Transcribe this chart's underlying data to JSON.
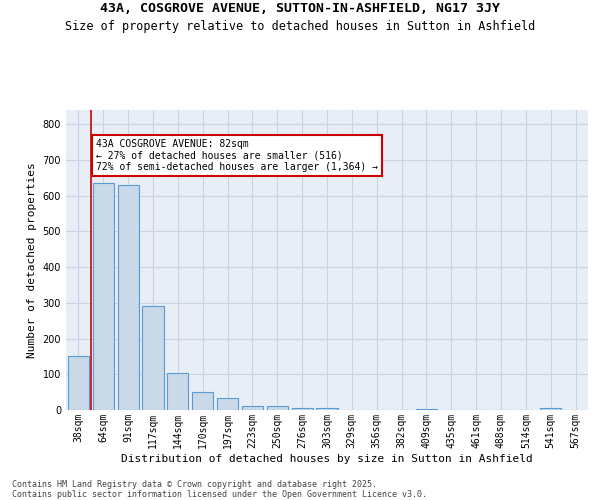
{
  "title1": "43A, COSGROVE AVENUE, SUTTON-IN-ASHFIELD, NG17 3JY",
  "title2": "Size of property relative to detached houses in Sutton in Ashfield",
  "xlabel": "Distribution of detached houses by size in Sutton in Ashfield",
  "ylabel": "Number of detached properties",
  "categories": [
    "38sqm",
    "64sqm",
    "91sqm",
    "117sqm",
    "144sqm",
    "170sqm",
    "197sqm",
    "223sqm",
    "250sqm",
    "276sqm",
    "303sqm",
    "329sqm",
    "356sqm",
    "382sqm",
    "409sqm",
    "435sqm",
    "461sqm",
    "488sqm",
    "514sqm",
    "541sqm",
    "567sqm"
  ],
  "values": [
    150,
    635,
    630,
    290,
    105,
    50,
    35,
    12,
    12,
    7,
    5,
    0,
    0,
    0,
    3,
    0,
    0,
    0,
    0,
    5,
    0
  ],
  "bar_color": "#c9d9e8",
  "bar_edge_color": "#5b9bd5",
  "grid_color": "#c8d4e3",
  "background_color": "#e8eef5",
  "annotation_box_text": "43A COSGROVE AVENUE: 82sqm\n← 27% of detached houses are smaller (516)\n72% of semi-detached houses are larger (1,364) →",
  "annotation_box_color": "#cc0000",
  "vline_x": 0.5,
  "vline_color": "#cc0000",
  "ylim": [
    0,
    840
  ],
  "yticks": [
    0,
    100,
    200,
    300,
    400,
    500,
    600,
    700,
    800
  ],
  "footnote": "Contains HM Land Registry data © Crown copyright and database right 2025.\nContains public sector information licensed under the Open Government Licence v3.0.",
  "title_fontsize": 9.5,
  "subtitle_fontsize": 8.5,
  "tick_fontsize": 7,
  "ylabel_fontsize": 8,
  "xlabel_fontsize": 8,
  "footnote_fontsize": 6,
  "annot_fontsize": 7
}
